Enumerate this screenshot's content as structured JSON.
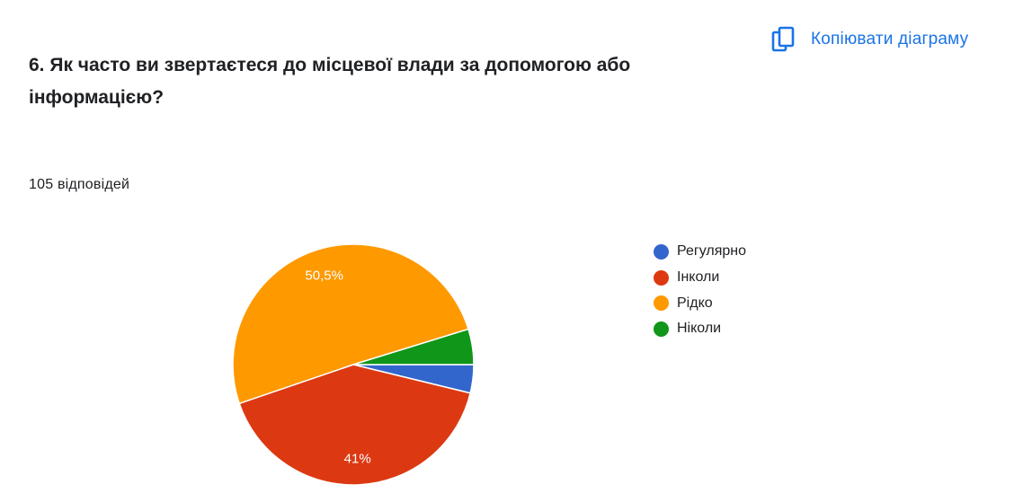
{
  "question": {
    "title": "6. Як часто ви звертаєтеся до місцевої влади за допомогою або інформацією?",
    "response_count": "105 відповідей"
  },
  "toolbar": {
    "copy_label": "Копіювати діаграму",
    "copy_icon": "copy-icon"
  },
  "colors": {
    "accent": "#1a73e8"
  },
  "chart_data": {
    "type": "pie",
    "total_responses": 105,
    "categories": [
      "Регулярно",
      "Інколи",
      "Рідко",
      "Ніколи"
    ],
    "values": [
      4,
      43,
      53,
      5
    ],
    "percent_labels": [
      "",
      "41%",
      "50,5%",
      ""
    ],
    "colors": [
      "#3366cc",
      "#dc3912",
      "#ff9900",
      "#109618"
    ],
    "legend_position": "right"
  }
}
